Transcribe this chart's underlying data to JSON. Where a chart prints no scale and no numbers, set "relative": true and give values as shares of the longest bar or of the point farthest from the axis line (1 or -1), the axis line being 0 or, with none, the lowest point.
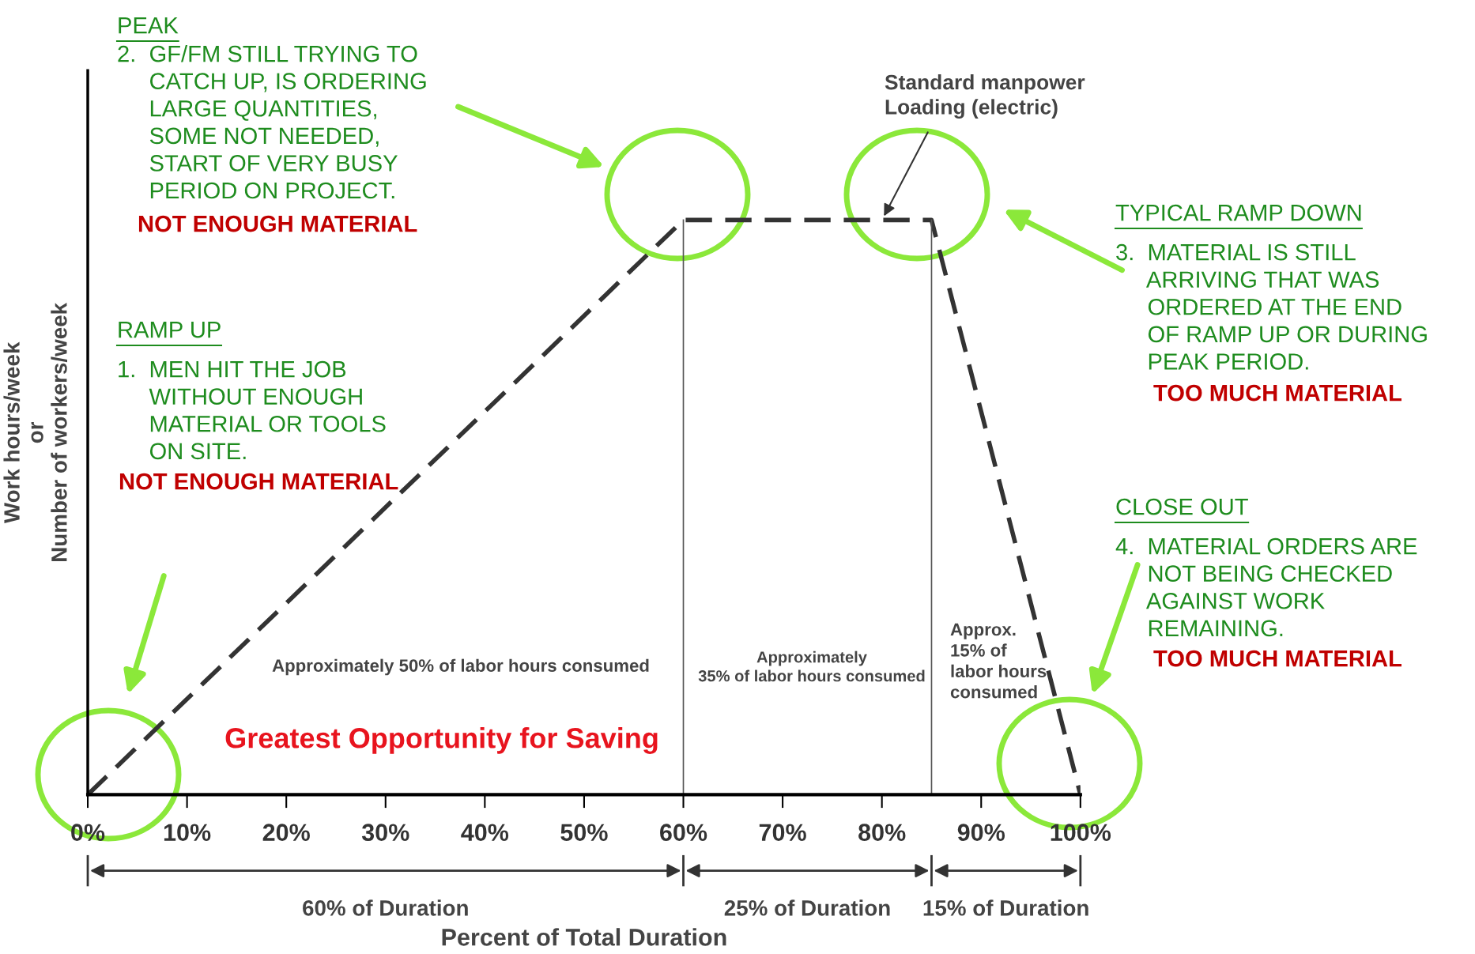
{
  "chart_data": {
    "type": "line",
    "relative": true,
    "xlabel": "Percent of Total Duration",
    "ylabel": "Work hours/week\nor\nNumber of workers/week",
    "x": [
      0,
      60,
      85,
      100
    ],
    "series": [
      {
        "color": "#333333",
        "values": [
          0,
          1,
          1,
          0
        ]
      }
    ],
    "line_style": "dashed",
    "marker": "none",
    "grid": false,
    "legend": false,
    "xlim": [
      0,
      100
    ],
    "xticks": [
      {
        "value": 0,
        "label": "0%"
      },
      {
        "value": 10,
        "label": "10%"
      },
      {
        "value": 20,
        "label": "20%"
      },
      {
        "value": 30,
        "label": "30%"
      },
      {
        "value": 40,
        "label": "40%"
      },
      {
        "value": 50,
        "label": "50%"
      },
      {
        "value": 60,
        "label": "60%"
      },
      {
        "value": 70,
        "label": "70%"
      },
      {
        "value": 80,
        "label": "80%"
      },
      {
        "value": 90,
        "label": "90%"
      },
      {
        "value": 100,
        "label": "100%"
      }
    ],
    "ref_lines": [
      {
        "axis": "x",
        "value": 60,
        "color": "#555555"
      },
      {
        "axis": "x",
        "value": 85,
        "color": "#555555"
      }
    ],
    "annotations": [
      "PEAK",
      "2.  GF/FM STILL TRYING TO\n     CATCH UP, IS ORDERING\n     LARGE QUANTITIES,\n     SOME NOT NEEDED,\n     START OF VERY BUSY\n     PERIOD ON PROJECT.",
      "NOT ENOUGH MATERIAL",
      "RAMP UP",
      "1.  MEN HIT THE JOB\n     WITHOUT ENOUGH\n     MATERIAL OR TOOLS\n     ON SITE.",
      "NOT ENOUGH MATERIAL",
      "TYPICAL RAMP DOWN",
      "3.  MATERIAL IS STILL\n     ARRIVING THAT WAS\n     ORDERED AT THE END\n     OF RAMP UP OR DURING\n     PEAK PERIOD.",
      "TOO MUCH MATERIAL",
      "CLOSE OUT",
      "4.  MATERIAL ORDERS ARE\n     NOT BEING CHECKED\n     AGAINST WORK\n     REMAINING.",
      "TOO MUCH MATERIAL",
      "Standard manpower\nLoading (electric)",
      "Approximately 50% of labor hours consumed",
      "Approximately\n35% of labor hours consumed",
      "Approx.\n15% of\nlabor hours\nconsumed",
      "Greatest Opportunity for Saving",
      "60% of Duration",
      "25% of Duration",
      "15% of Duration"
    ]
  }
}
